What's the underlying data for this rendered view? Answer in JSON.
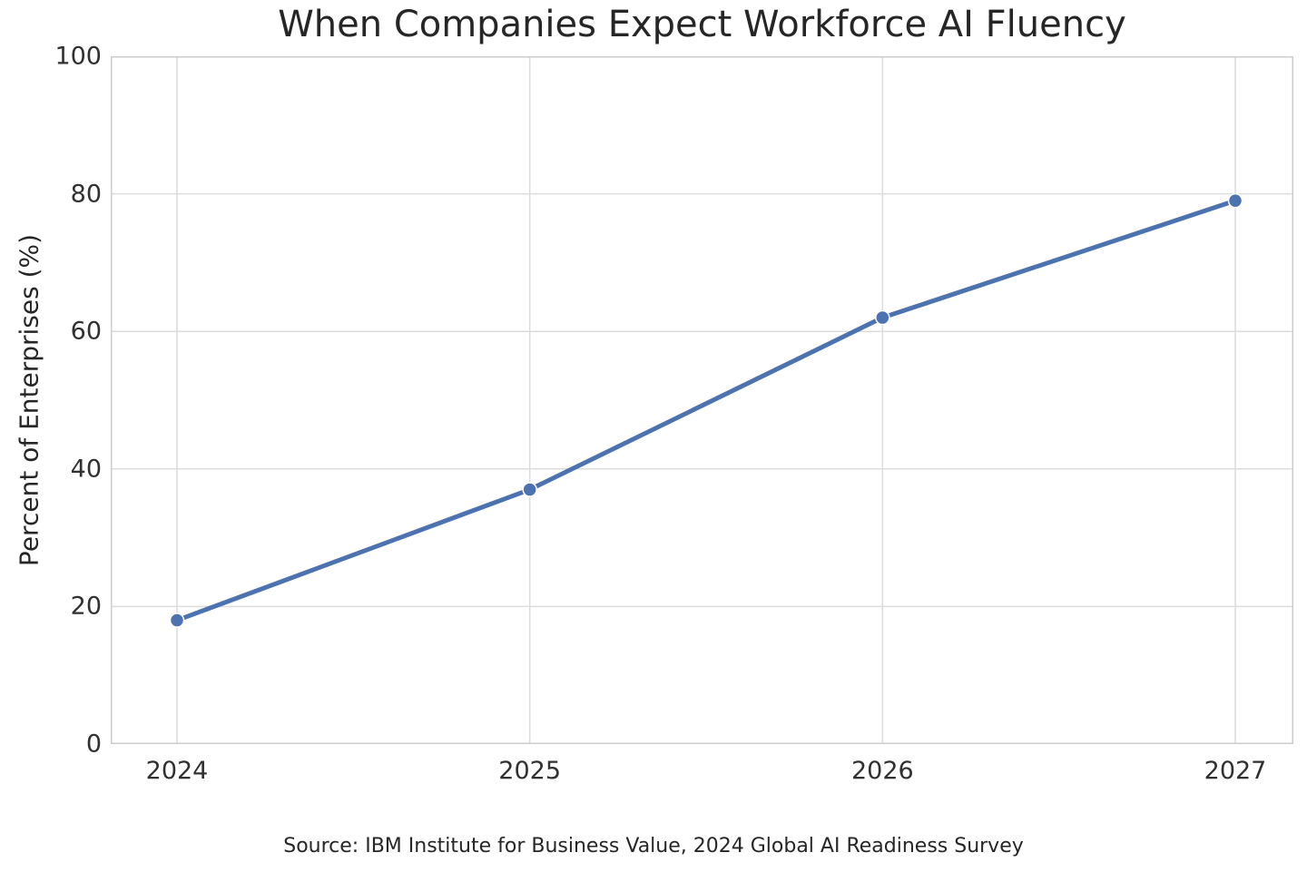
{
  "figure": {
    "title": "When Companies Expect Workforce AI Fluency",
    "source_note": "Source: IBM Institute for Business Value, 2024 Global AI Readiness Survey"
  },
  "chart_data": {
    "type": "line",
    "title": "When Companies Expect Workforce AI Fluency",
    "categories": [
      "2024",
      "2025",
      "2026",
      "2027"
    ],
    "series": [
      {
        "name": "Percent of Enterprises",
        "values": [
          18,
          37,
          62,
          79
        ]
      }
    ],
    "xlabel": "",
    "ylabel": "Percent of Enterprises (%)",
    "ylim": [
      0,
      100
    ],
    "yticks": [
      0,
      20,
      40,
      60,
      80,
      100
    ],
    "grid": true,
    "legend": "none",
    "annotation": "Source: IBM Institute for Business Value, 2024 Global AI Readiness Survey",
    "colors": {
      "line": "#4C72B0",
      "marker": "#4C72B0",
      "marker_edge": "#ffffff",
      "grid": "#DCDCDC",
      "spine": "#CCCCCC",
      "text": "#262626"
    }
  }
}
